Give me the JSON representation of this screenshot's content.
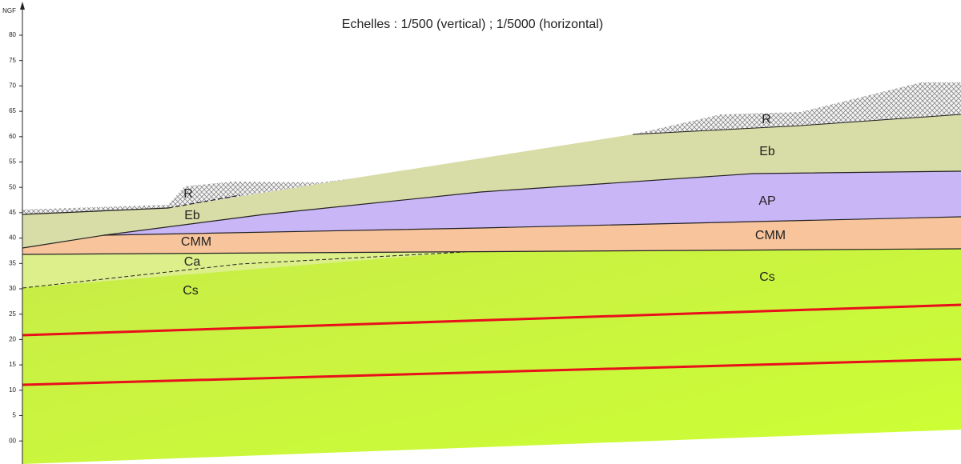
{
  "header": {
    "title": "Echelles : 1/500 (vertical) ; 1/5000 (horizontal)"
  },
  "axis": {
    "label": "NGF",
    "ticks": [
      "80",
      "75",
      "70",
      "65",
      "60",
      "55",
      "50",
      "45",
      "40",
      "35",
      "30",
      "25",
      "20",
      "15",
      "10",
      "5",
      "00"
    ]
  },
  "labels": {
    "left": [
      "R",
      "Eb",
      "CMM",
      "Ca",
      "Cs"
    ],
    "right": [
      "R",
      "Eb",
      "AP",
      "CMM",
      "Cs"
    ]
  }
}
